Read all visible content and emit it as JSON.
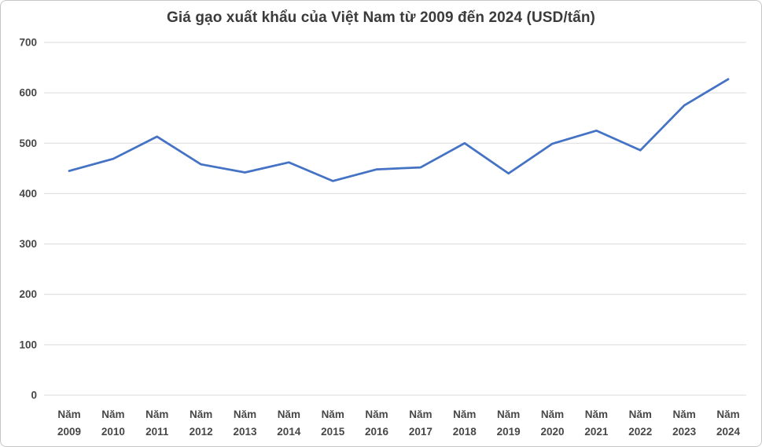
{
  "chart_data": {
    "type": "line",
    "title": "Giá gạo xuất khẩu của Việt Nam từ 2009 đến 2024 (USD/tấn)",
    "categories": [
      "Năm 2009",
      "Năm 2010",
      "Năm 2011",
      "Năm 2012",
      "Năm 2013",
      "Năm 2014",
      "Năm 2015",
      "Năm 2016",
      "Năm 2017",
      "Năm 2018",
      "Năm 2019",
      "Năm 2020",
      "Năm 2021",
      "Năm 2022",
      "Năm 2023",
      "Năm 2024"
    ],
    "values": [
      445,
      469,
      513,
      458,
      442,
      462,
      425,
      448,
      452,
      500,
      440,
      499,
      525,
      486,
      575,
      627
    ],
    "xlabel": "",
    "ylabel": "",
    "ylim": [
      0,
      700
    ],
    "ytick_step": 100,
    "grid": true,
    "legend": "none",
    "line_color": "#4472C4",
    "grid_color": "#DBDBDB",
    "tick_text_color": "#474747",
    "title_color": "#3b3b3b"
  }
}
